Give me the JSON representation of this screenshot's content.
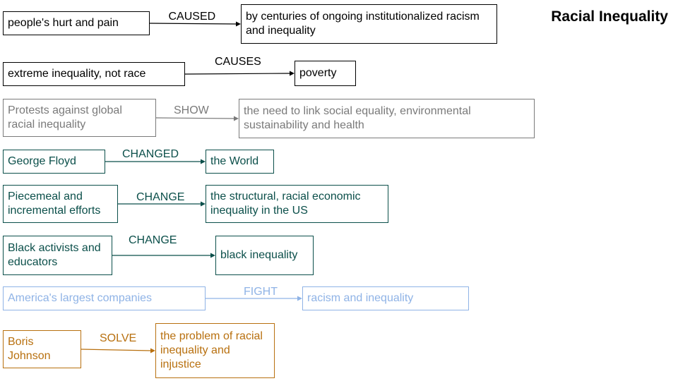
{
  "title": "Racial Inequality",
  "relations": [
    {
      "subject": "people's hurt and pain",
      "verb": "CAUSED",
      "object": "by centuries of ongoing institutionalized racism and inequality",
      "color": "#000000"
    },
    {
      "subject": "extreme inequality, not race",
      "verb": "CAUSES",
      "object": "poverty",
      "color": "#000000"
    },
    {
      "subject": "Protests against global racial inequality",
      "verb": "SHOW",
      "object": "the need to link social equality, environmental sustainability and health",
      "color": "#7a7a7a"
    },
    {
      "subject": "George Floyd",
      "verb": "CHANGED",
      "object": "the World",
      "color": "#0b4f4a"
    },
    {
      "subject": "Piecemeal and incremental efforts",
      "verb": "CHANGE",
      "object": "the structural, racial economic inequality in the US",
      "color": "#0b4f4a"
    },
    {
      "subject": "Black activists and educators",
      "verb": "CHANGE",
      "object": "black inequality",
      "color": "#0b4f4a"
    },
    {
      "subject": "America's largest companies",
      "verb": "FIGHT",
      "object": "racism and inequality",
      "color": "#8fb3e6"
    },
    {
      "subject": "Boris Johnson",
      "verb": "SOLVE",
      "object": "the problem of racial inequality and injustice",
      "color": "#b8700f"
    }
  ]
}
